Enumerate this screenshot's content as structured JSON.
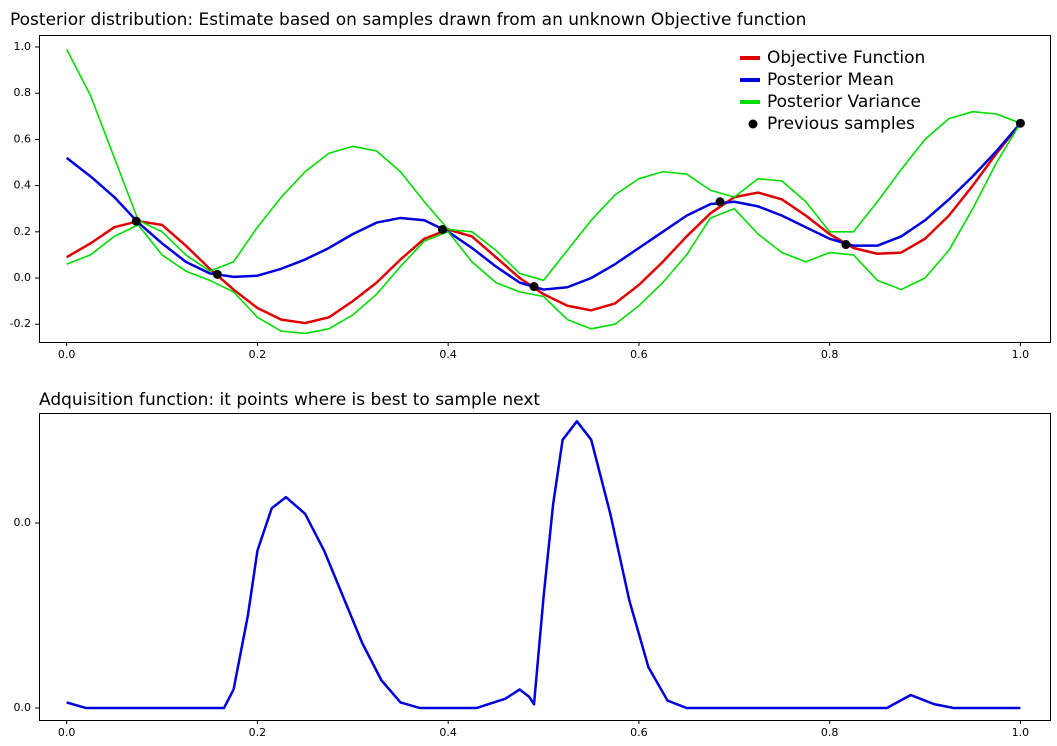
{
  "chart_data": [
    {
      "type": "line",
      "title": "Posterior distribution: Estimate based on samples drawn from an unknown Objective function",
      "x": [
        0,
        0.025,
        0.05,
        0.075,
        0.1,
        0.125,
        0.15,
        0.175,
        0.2,
        0.225,
        0.25,
        0.275,
        0.3,
        0.325,
        0.35,
        0.375,
        0.4,
        0.425,
        0.45,
        0.475,
        0.5,
        0.525,
        0.55,
        0.575,
        0.6,
        0.625,
        0.65,
        0.675,
        0.7,
        0.725,
        0.75,
        0.775,
        0.8,
        0.825,
        0.85,
        0.875,
        0.9,
        0.925,
        0.95,
        0.975,
        1.0
      ],
      "series": [
        {
          "name": "Objective Function",
          "color": "#e00000",
          "values": [
            0.09,
            0.15,
            0.22,
            0.246,
            0.23,
            0.14,
            0.04,
            -0.05,
            -0.13,
            -0.18,
            -0.195,
            -0.17,
            -0.1,
            -0.02,
            0.08,
            0.17,
            0.21,
            0.18,
            0.09,
            0.0,
            -0.07,
            -0.12,
            -0.14,
            -0.11,
            -0.03,
            0.07,
            0.18,
            0.28,
            0.35,
            0.37,
            0.34,
            0.27,
            0.19,
            0.13,
            0.105,
            0.11,
            0.17,
            0.27,
            0.4,
            0.54,
            0.67
          ]
        },
        {
          "name": "Posterior Mean",
          "color": "#0000dd",
          "values": [
            0.52,
            0.44,
            0.35,
            0.24,
            0.15,
            0.07,
            0.02,
            0.005,
            0.01,
            0.04,
            0.08,
            0.13,
            0.19,
            0.24,
            0.26,
            0.25,
            0.2,
            0.13,
            0.05,
            -0.02,
            -0.05,
            -0.04,
            0.0,
            0.06,
            0.13,
            0.2,
            0.27,
            0.32,
            0.33,
            0.31,
            0.27,
            0.22,
            0.17,
            0.14,
            0.14,
            0.18,
            0.25,
            0.34,
            0.44,
            0.55,
            0.67
          ]
        },
        {
          "name": "Posterior Variance",
          "color": "#00dd00",
          "upper": [
            0.99,
            0.79,
            0.52,
            0.25,
            0.2,
            0.1,
            0.03,
            0.07,
            0.22,
            0.35,
            0.46,
            0.54,
            0.57,
            0.55,
            0.46,
            0.33,
            0.21,
            0.2,
            0.12,
            0.02,
            -0.01,
            0.12,
            0.25,
            0.36,
            0.43,
            0.46,
            0.45,
            0.38,
            0.35,
            0.43,
            0.42,
            0.33,
            0.2,
            0.2,
            0.33,
            0.47,
            0.6,
            0.69,
            0.72,
            0.71,
            0.67
          ],
          "lower": [
            0.06,
            0.1,
            0.18,
            0.23,
            0.1,
            0.03,
            -0.01,
            -0.06,
            -0.17,
            -0.23,
            -0.24,
            -0.22,
            -0.16,
            -0.07,
            0.05,
            0.16,
            0.2,
            0.07,
            -0.02,
            -0.06,
            -0.08,
            -0.18,
            -0.22,
            -0.2,
            -0.12,
            -0.02,
            0.1,
            0.26,
            0.3,
            0.19,
            0.11,
            0.07,
            0.11,
            0.1,
            -0.01,
            -0.05,
            0.0,
            0.12,
            0.3,
            0.5,
            0.67
          ]
        },
        {
          "name": "Previous samples",
          "color": "#000000",
          "type": "scatter",
          "x": [
            0.073,
            0.158,
            0.394,
            0.49,
            0.685,
            0.817,
            1.0
          ],
          "values": [
            0.246,
            0.016,
            0.21,
            -0.037,
            0.33,
            0.145,
            0.67
          ]
        }
      ],
      "xlim": [
        -0.029,
        1.031
      ],
      "ylim": [
        -0.277,
        1.052
      ],
      "xticks": [
        {
          "value": 0,
          "label": "0.0"
        },
        0.2,
        0.4,
        0.6,
        0.8,
        {
          "value": 1,
          "label": "1.0"
        }
      ],
      "yticks": [
        -0.2,
        {
          "value": 0,
          "label": "0.0"
        },
        0.2,
        0.4,
        0.6,
        0.8,
        {
          "value": 1,
          "label": "1.0"
        }
      ],
      "legend": "upper right"
    },
    {
      "type": "line",
      "title": "Adquisition function: it points where is best to sample next",
      "x": [
        0,
        0.02,
        0.1,
        0.165,
        0.175,
        0.19,
        0.2,
        0.215,
        0.23,
        0.25,
        0.27,
        0.29,
        0.31,
        0.33,
        0.35,
        0.37,
        0.4,
        0.43,
        0.46,
        0.475,
        0.485,
        0.49,
        0.5,
        0.51,
        0.52,
        0.535,
        0.55,
        0.57,
        0.59,
        0.61,
        0.63,
        0.65,
        0.75,
        0.86,
        0.885,
        0.91,
        0.93,
        1.0
      ],
      "series": [
        {
          "color": "#0000dd",
          "values": [
            0.0003,
            0,
            0,
            0,
            0.001,
            0.005,
            0.0085,
            0.0108,
            0.0114,
            0.0105,
            0.0085,
            0.006,
            0.0035,
            0.0015,
            0.0003,
            0,
            0,
            0,
            0.0005,
            0.001,
            0.0006,
            0.0002,
            0.006,
            0.011,
            0.0145,
            0.0155,
            0.0145,
            0.0105,
            0.0058,
            0.0022,
            0.0004,
            0,
            0,
            0,
            0.0007,
            0.0002,
            0,
            0
          ]
        }
      ],
      "xlim": [
        -0.029,
        1.031
      ],
      "ylim": [
        -0.00065,
        0.01595
      ],
      "xticks": [
        {
          "value": 0,
          "label": "0.0"
        },
        0.2,
        0.4,
        0.6,
        0.8,
        {
          "value": 1,
          "label": "1.0"
        }
      ],
      "yticks": [
        {
          "value": 0,
          "label": "0.0"
        },
        {
          "value": 0.01,
          "label": "0.0"
        }
      ]
    }
  ]
}
